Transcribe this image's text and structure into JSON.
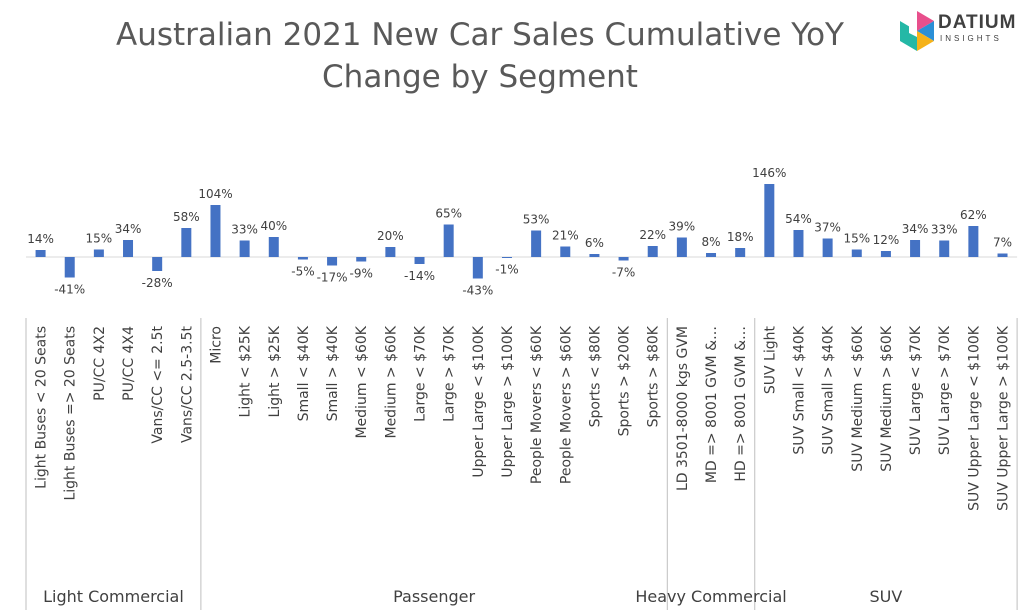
{
  "title_line1": "Australian 2021 New Car Sales Cumulative YoY",
  "title_line2": "Change by Segment",
  "logo": {
    "name": "DATIUM",
    "sub": "INSIGHTS",
    "colors": [
      "#e84f8c",
      "#2b8fd6",
      "#f5b21a",
      "#24b8a6"
    ]
  },
  "chart_data": {
    "type": "bar",
    "title": "Australian 2021 New Car Sales Cumulative YoY Change by Segment",
    "bar_color": "#4472c4",
    "grid": false,
    "legend": "none",
    "categories": [
      "Light Buses < 20 Seats",
      "Light Buses => 20 Seats",
      "PU/CC 4X2",
      "PU/CC 4X4",
      "Vans/CC <= 2.5t",
      "Vans/CC 2.5-3.5t",
      "Micro",
      "Light < $25K",
      "Light > $25K",
      "Small < $40K",
      "Small > $40K",
      "Medium < $60K",
      "Medium > $60K",
      "Large < $70K",
      "Large > $70K",
      "Upper Large < $100K",
      "Upper Large > $100K",
      "People Movers < $60K",
      "People Movers > $60K",
      "Sports < $80K",
      "Sports > $200K",
      "Sports > $80K",
      "LD 3501-8000 kgs GVM",
      "MD => 8001 GVM &…",
      "HD => 8001 GVM &…",
      "SUV Light",
      "SUV Small < $40K",
      "SUV Small > $40K",
      "SUV Medium < $60K",
      "SUV Medium > $60K",
      "SUV Large < $70K",
      "SUV Large > $70K",
      "SUV Upper Large < $100K",
      "SUV Upper Large > $100K"
    ],
    "values": [
      14,
      -41,
      15,
      34,
      -28,
      58,
      104,
      33,
      40,
      -5,
      -17,
      -9,
      20,
      -14,
      65,
      -43,
      -1,
      53,
      21,
      6,
      -7,
      22,
      39,
      8,
      18,
      146,
      54,
      37,
      15,
      12,
      34,
      33,
      62,
      7
    ],
    "data_labels": [
      "14%",
      "-41%",
      "15%",
      "34%",
      "-28%",
      "58%",
      "104%",
      "33%",
      "40%",
      "-5%",
      "-17%",
      "-9%",
      "20%",
      "-14%",
      "65%",
      "-43%",
      "-1%",
      "53%",
      "21%",
      "6%",
      "-7%",
      "22%",
      "39%",
      "8%",
      "18%",
      "146%",
      "54%",
      "37%",
      "15%",
      "12%",
      "34%",
      "33%",
      "62%",
      "7%"
    ],
    "groups": [
      {
        "name": "Light Commercial",
        "count": 6
      },
      {
        "name": "Passenger",
        "count": 16
      },
      {
        "name": "Heavy Commercial",
        "count": 3
      },
      {
        "name": "SUV",
        "count": 9
      }
    ]
  }
}
